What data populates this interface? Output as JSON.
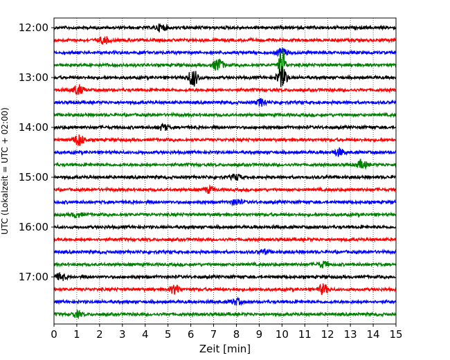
{
  "chart_data": {
    "type": "line",
    "title": "",
    "xlabel": "Zeit  [min]",
    "ylabel": "UTC (Lokalzeit = UTC + 02:00)",
    "xlim": [
      0,
      15
    ],
    "x_ticks": [
      "0",
      "1",
      "2",
      "3",
      "4",
      "5",
      "6",
      "7",
      "8",
      "9",
      "10",
      "11",
      "12",
      "13",
      "14",
      "15"
    ],
    "y_ticks": [
      "12:00",
      "13:00",
      "14:00",
      "15:00",
      "16:00",
      "17:00"
    ],
    "grid": "vertical dotted",
    "trace_start": "12:00",
    "trace_interval_min": 15,
    "trace_colors": [
      "#000000",
      "#ff0000",
      "#0000ff",
      "#008000"
    ],
    "series": [
      {
        "start": "12:00",
        "color": "#000000",
        "events": [
          {
            "x": 4.7,
            "amp": 5
          }
        ]
      },
      {
        "start": "12:15",
        "color": "#ff0000",
        "events": [
          {
            "x": 2.2,
            "amp": 5
          }
        ]
      },
      {
        "start": "12:30",
        "color": "#0000ff",
        "events": [
          {
            "x": 10.0,
            "amp": 6
          }
        ]
      },
      {
        "start": "12:45",
        "color": "#008000",
        "events": [
          {
            "x": 7.2,
            "amp": 9
          },
          {
            "x": 10.0,
            "amp": 30
          }
        ]
      },
      {
        "start": "13:00",
        "color": "#000000",
        "events": [
          {
            "x": 6.1,
            "amp": 12
          },
          {
            "x": 10.0,
            "amp": 14
          }
        ]
      },
      {
        "start": "13:15",
        "color": "#ff0000",
        "events": [
          {
            "x": 1.05,
            "amp": 7
          }
        ]
      },
      {
        "start": "13:30",
        "color": "#0000ff",
        "events": [
          {
            "x": 9.1,
            "amp": 5
          }
        ]
      },
      {
        "start": "13:45",
        "color": "#008000",
        "events": []
      },
      {
        "start": "14:00",
        "color": "#000000",
        "events": [
          {
            "x": 4.8,
            "amp": 4
          }
        ]
      },
      {
        "start": "14:15",
        "color": "#ff0000",
        "events": [
          {
            "x": 1.1,
            "amp": 8
          }
        ]
      },
      {
        "start": "14:30",
        "color": "#0000ff",
        "events": [
          {
            "x": 12.5,
            "amp": 5
          }
        ]
      },
      {
        "start": "14:45",
        "color": "#008000",
        "events": [
          {
            "x": 13.5,
            "amp": 6
          }
        ]
      },
      {
        "start": "15:00",
        "color": "#000000",
        "events": [
          {
            "x": 8.0,
            "amp": 4
          }
        ]
      },
      {
        "start": "15:15",
        "color": "#ff0000",
        "events": [
          {
            "x": 6.8,
            "amp": 4
          }
        ]
      },
      {
        "start": "15:30",
        "color": "#0000ff",
        "events": [
          {
            "x": 8.0,
            "amp": 4
          }
        ]
      },
      {
        "start": "15:45",
        "color": "#008000",
        "events": [
          {
            "x": 1.0,
            "amp": 3
          }
        ]
      },
      {
        "start": "16:00",
        "color": "#000000",
        "events": []
      },
      {
        "start": "16:15",
        "color": "#ff0000",
        "events": []
      },
      {
        "start": "16:30",
        "color": "#0000ff",
        "events": [
          {
            "x": 9.2,
            "amp": 3
          }
        ]
      },
      {
        "start": "16:45",
        "color": "#008000",
        "events": [
          {
            "x": 11.8,
            "amp": 4
          }
        ]
      },
      {
        "start": "17:00",
        "color": "#000000",
        "events": [
          {
            "x": 0.3,
            "amp": 5
          }
        ]
      },
      {
        "start": "17:15",
        "color": "#ff0000",
        "events": [
          {
            "x": 5.3,
            "amp": 6
          },
          {
            "x": 11.8,
            "amp": 7
          }
        ]
      },
      {
        "start": "17:30",
        "color": "#0000ff",
        "events": [
          {
            "x": 8.0,
            "amp": 4
          }
        ]
      },
      {
        "start": "17:45",
        "color": "#008000",
        "events": [
          {
            "x": 1.0,
            "amp": 4
          }
        ]
      }
    ]
  }
}
